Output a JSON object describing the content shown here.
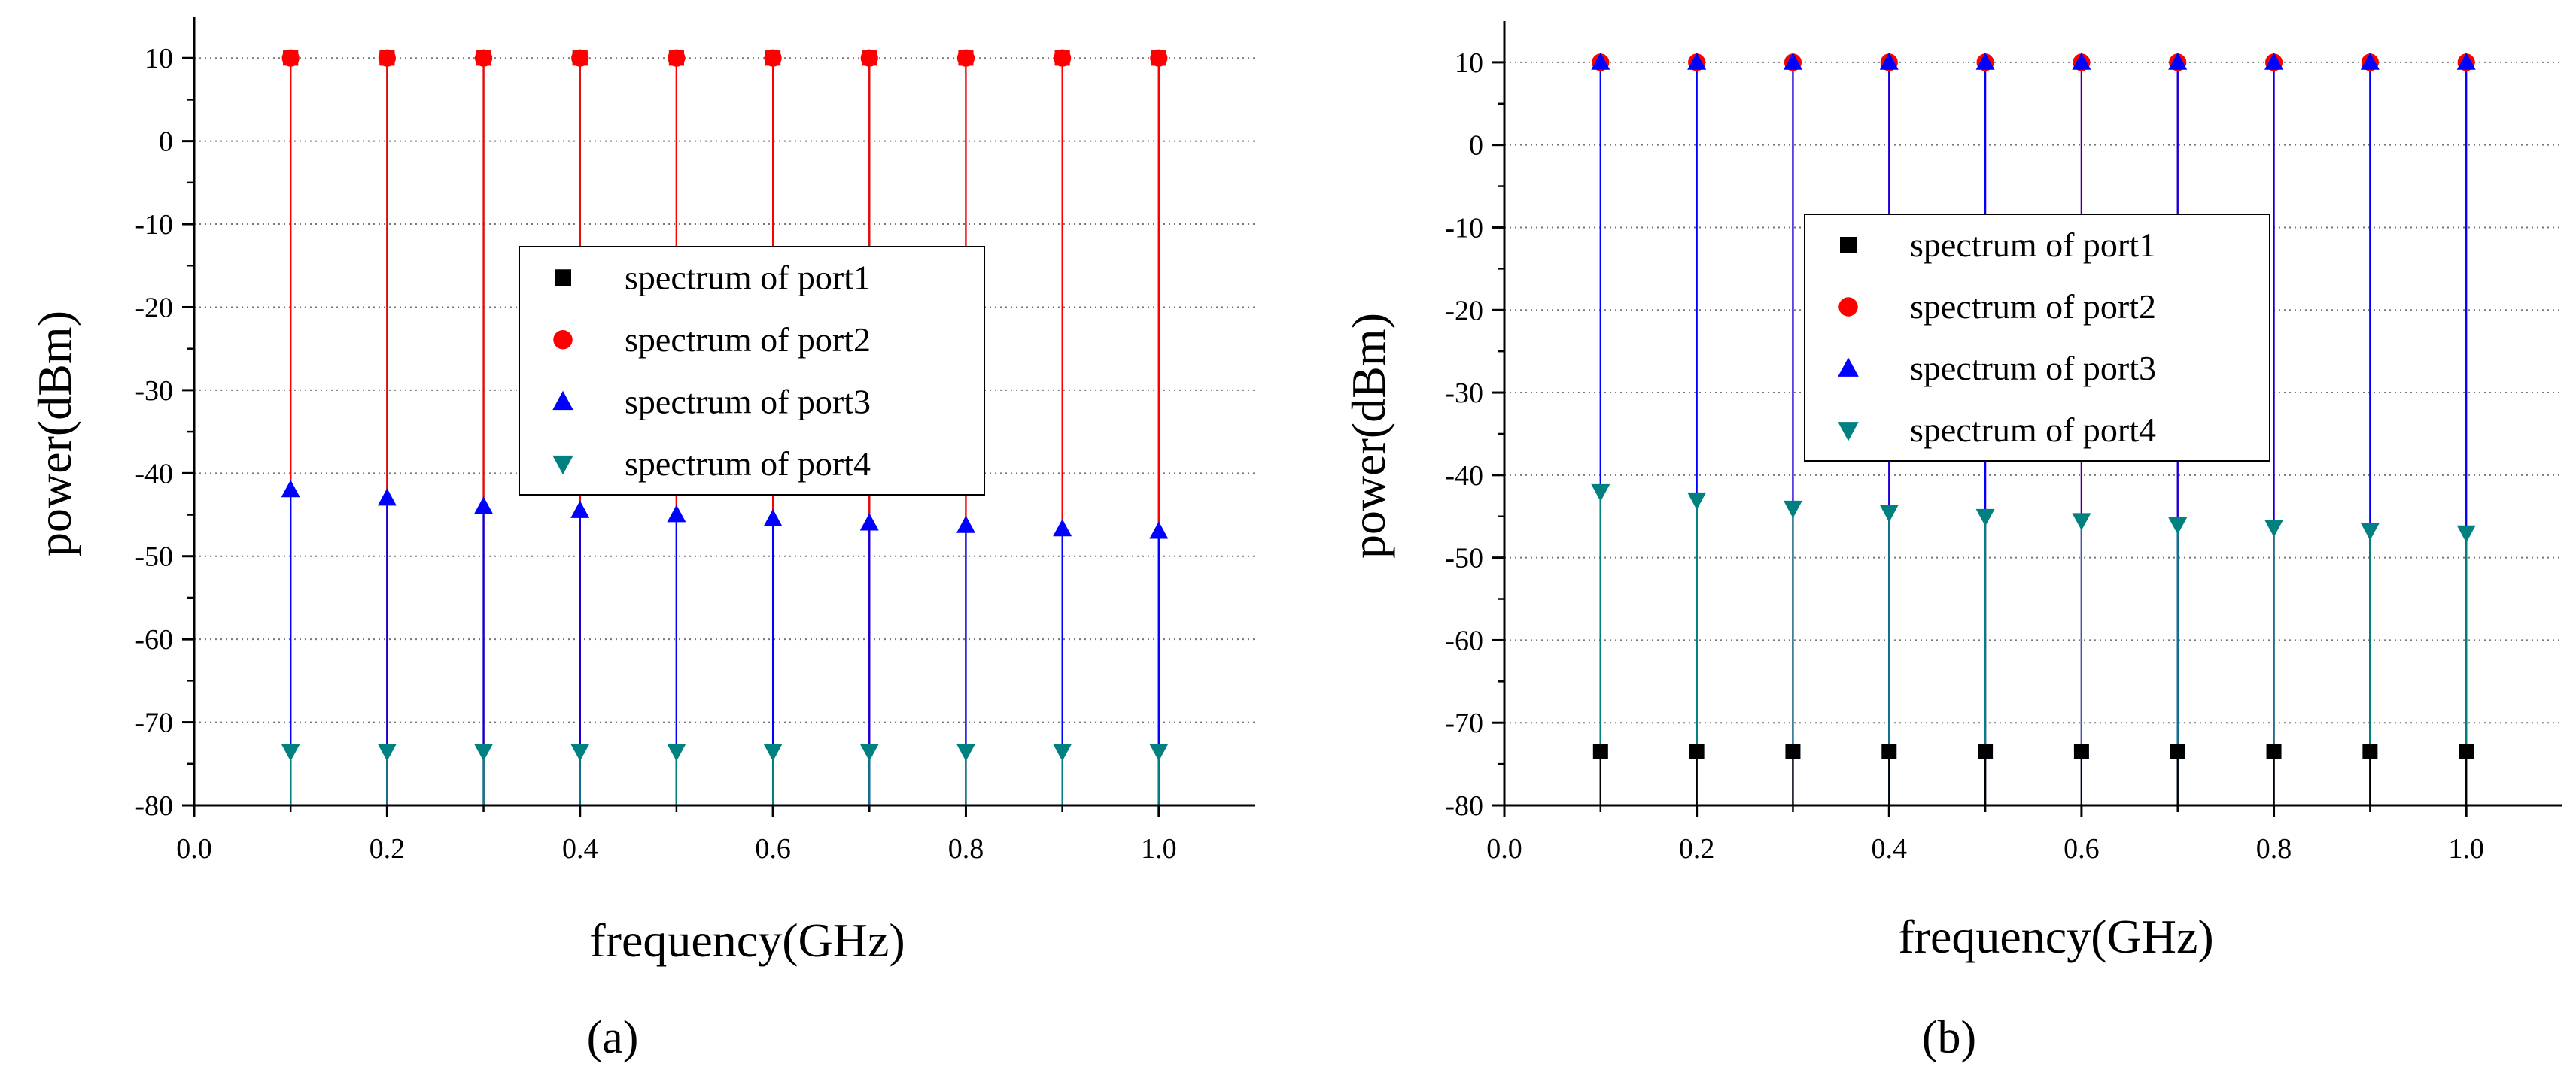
{
  "chart_data": [
    {
      "type": "stem",
      "panel_label": "(a)",
      "xlabel": "frequency(GHz)",
      "ylabel": "power(dBm)",
      "xlim": [
        0.0,
        1.1
      ],
      "ylim": [
        -80,
        15
      ],
      "xticks": [
        0.0,
        0.2,
        0.4,
        0.6,
        0.8,
        1.0
      ],
      "xtick_labels": [
        "0.0",
        "0.2",
        "0.4",
        "0.6",
        "0.8",
        "1.0"
      ],
      "yticks": [
        10,
        0,
        -10,
        -20,
        -30,
        -40,
        -50,
        -60,
        -70,
        -80
      ],
      "ytick_labels": [
        "10",
        "0",
        "-10",
        "-20",
        "-30",
        "-40",
        "-50",
        "-60",
        "-70",
        "-80"
      ],
      "grid": "horizontal dotted",
      "legend_position": "center-right",
      "x": [
        0.1,
        0.2,
        0.3,
        0.4,
        0.5,
        0.6,
        0.7,
        0.8,
        0.9,
        1.0
      ],
      "series": [
        {
          "name": "spectrum of port1",
          "marker": "square",
          "color": "#000000",
          "values": [
            10,
            10,
            10,
            10,
            10,
            10,
            10,
            10,
            10,
            10
          ]
        },
        {
          "name": "spectrum of port2",
          "marker": "circle",
          "color": "#ff0000",
          "values": [
            10,
            10,
            10,
            10,
            10,
            10,
            10,
            10,
            10,
            10
          ]
        },
        {
          "name": "spectrum of port3",
          "marker": "triangle-up",
          "color": "#0000ff",
          "values": [
            -42,
            -43,
            -44,
            -44.5,
            -45,
            -45.5,
            -46,
            -46.3,
            -46.7,
            -47
          ]
        },
        {
          "name": "spectrum of port4",
          "marker": "triangle-down",
          "color": "#008080",
          "values": [
            -73.5,
            -73.5,
            -73.5,
            -73.5,
            -73.5,
            -73.5,
            -73.5,
            -73.5,
            -73.5,
            -73.5
          ]
        }
      ]
    },
    {
      "type": "stem",
      "panel_label": "(b)",
      "xlabel": "frequency(GHz)",
      "ylabel": "power(dBm)",
      "xlim": [
        0.0,
        1.1
      ],
      "ylim": [
        -80,
        15
      ],
      "xticks": [
        0.0,
        0.2,
        0.4,
        0.6,
        0.8,
        1.0
      ],
      "xtick_labels": [
        "0.0",
        "0.2",
        "0.4",
        "0.6",
        "0.8",
        "1.0"
      ],
      "yticks": [
        10,
        0,
        -10,
        -20,
        -30,
        -40,
        -50,
        -60,
        -70,
        -80
      ],
      "ytick_labels": [
        "10",
        "0",
        "-10",
        "-20",
        "-30",
        "-40",
        "-50",
        "-60",
        "-70",
        "-80"
      ],
      "grid": "horizontal dotted",
      "legend_position": "center",
      "x": [
        0.1,
        0.2,
        0.3,
        0.4,
        0.5,
        0.6,
        0.7,
        0.8,
        0.9,
        1.0
      ],
      "series": [
        {
          "name": "spectrum of port1",
          "marker": "square",
          "color": "#000000",
          "values": [
            -73.5,
            -73.5,
            -73.5,
            -73.5,
            -73.5,
            -73.5,
            -73.5,
            -73.5,
            -73.5,
            -73.5
          ]
        },
        {
          "name": "spectrum of port2",
          "marker": "circle",
          "color": "#ff0000",
          "values": [
            10,
            10,
            10,
            10,
            10,
            10,
            10,
            10,
            10,
            10
          ]
        },
        {
          "name": "spectrum of port3",
          "marker": "triangle-up",
          "color": "#0000ff",
          "values": [
            10,
            10,
            10,
            10,
            10,
            10,
            10,
            10,
            10,
            10
          ]
        },
        {
          "name": "spectrum of port4",
          "marker": "triangle-down",
          "color": "#008080",
          "values": [
            -42,
            -43,
            -44,
            -44.5,
            -45,
            -45.5,
            -46,
            -46.3,
            -46.7,
            -47
          ]
        }
      ]
    }
  ]
}
